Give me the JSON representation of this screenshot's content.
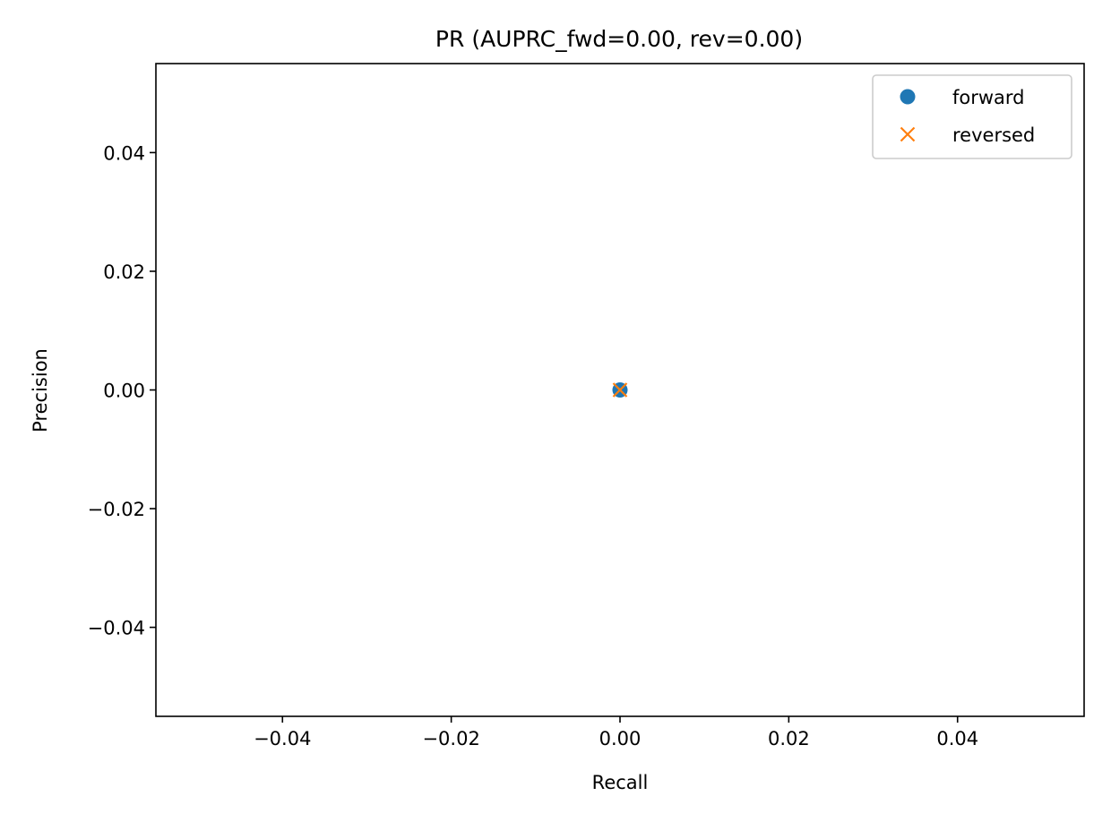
{
  "chart_data": {
    "type": "scatter",
    "title": "PR (AUPRC_fwd=0.00, rev=0.00)",
    "xlabel": "Recall",
    "ylabel": "Precision",
    "xlim": [
      -0.055,
      0.055
    ],
    "ylim": [
      -0.055,
      0.055
    ],
    "xticks": [
      -0.04,
      -0.02,
      0.0,
      0.02,
      0.04
    ],
    "xtick_labels": [
      "−0.04",
      "−0.02",
      "0.00",
      "0.02",
      "0.04"
    ],
    "yticks": [
      -0.04,
      -0.02,
      0.0,
      0.02,
      0.04
    ],
    "ytick_labels": [
      "−0.04",
      "−0.02",
      "0.00",
      "0.02",
      "0.04"
    ],
    "grid": false,
    "legend_position": "top-right",
    "series": [
      {
        "name": "forward",
        "marker": "circle",
        "color": "#1f77b4",
        "points": [
          [
            0.0,
            0.0
          ]
        ]
      },
      {
        "name": "reversed",
        "marker": "x",
        "color": "#ff7f0e",
        "points": [
          [
            0.0,
            0.0
          ]
        ]
      }
    ]
  }
}
